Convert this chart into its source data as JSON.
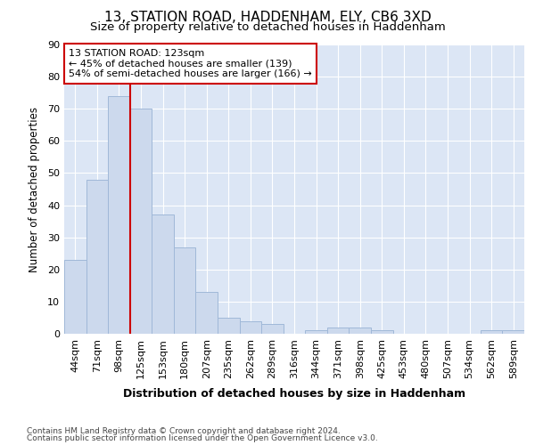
{
  "title": "13, STATION ROAD, HADDENHAM, ELY, CB6 3XD",
  "subtitle": "Size of property relative to detached houses in Haddenham",
  "xlabel": "Distribution of detached houses by size in Haddenham",
  "ylabel": "Number of detached properties",
  "footer1": "Contains HM Land Registry data © Crown copyright and database right 2024.",
  "footer2": "Contains public sector information licensed under the Open Government Licence v3.0.",
  "categories": [
    "44sqm",
    "71sqm",
    "98sqm",
    "125sqm",
    "153sqm",
    "180sqm",
    "207sqm",
    "235sqm",
    "262sqm",
    "289sqm",
    "316sqm",
    "344sqm",
    "371sqm",
    "398sqm",
    "425sqm",
    "453sqm",
    "480sqm",
    "507sqm",
    "534sqm",
    "562sqm",
    "589sqm"
  ],
  "values": [
    23,
    48,
    74,
    70,
    37,
    27,
    13,
    5,
    4,
    3,
    0,
    1,
    2,
    2,
    1,
    0,
    0,
    0,
    0,
    1,
    1
  ],
  "bar_color": "#ccd9ed",
  "bar_edge_color": "#a0b8d8",
  "vline_x_index": 3,
  "vline_color": "#cc0000",
  "annotation_title": "13 STATION ROAD: 123sqm",
  "annotation_line1": "← 45% of detached houses are smaller (139)",
  "annotation_line2": "54% of semi-detached houses are larger (166) →",
  "annotation_box_facecolor": "#ffffff",
  "annotation_box_edgecolor": "#cc0000",
  "ylim": [
    0,
    90
  ],
  "yticks": [
    0,
    10,
    20,
    30,
    40,
    50,
    60,
    70,
    80,
    90
  ],
  "fig_bg_color": "#ffffff",
  "plot_bg_color": "#dce6f5",
  "grid_color": "#ffffff",
  "title_fontsize": 11,
  "subtitle_fontsize": 9.5,
  "tick_fontsize": 8,
  "ylabel_fontsize": 8.5,
  "xlabel_fontsize": 9,
  "footer_fontsize": 6.5,
  "annot_fontsize": 8
}
